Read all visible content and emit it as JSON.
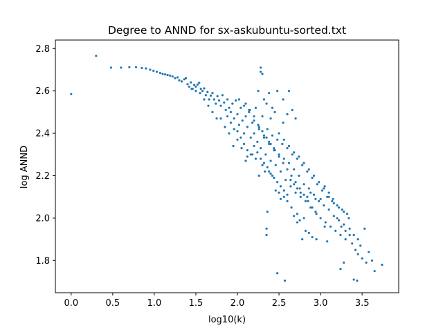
{
  "chart_data": {
    "type": "scatter",
    "title": "Degree to ANND for sx-askubuntu-sorted.txt",
    "xlabel": "log10(k)",
    "ylabel": "log ANND",
    "xlim": [
      -0.19,
      3.94
    ],
    "ylim": [
      1.648,
      2.84
    ],
    "xticks": [
      0.0,
      0.5,
      1.0,
      1.5,
      2.0,
      2.5,
      3.0,
      3.5
    ],
    "xtick_labels": [
      "0.0",
      "0.5",
      "1.0",
      "1.5",
      "2.0",
      "2.5",
      "3.0",
      "3.5"
    ],
    "yticks": [
      1.8,
      2.0,
      2.2,
      2.4,
      2.6,
      2.8
    ],
    "ytick_labels": [
      "1.8",
      "2.0",
      "2.2",
      "2.4",
      "2.6",
      "2.8"
    ],
    "grid": false,
    "legend": "none",
    "marker_color": "#1f77b4",
    "series": [
      {
        "points": [
          [
            0.0,
            2.585
          ],
          [
            0.3,
            2.765
          ],
          [
            0.48,
            2.71
          ],
          [
            0.6,
            2.71
          ],
          [
            0.7,
            2.712
          ],
          [
            0.78,
            2.712
          ],
          [
            0.85,
            2.708
          ],
          [
            0.9,
            2.706
          ],
          [
            0.95,
            2.7
          ],
          [
            0.99,
            2.695
          ],
          [
            1.03,
            2.69
          ],
          [
            1.07,
            2.685
          ],
          [
            1.1,
            2.68
          ],
          [
            1.13,
            2.678
          ],
          [
            1.16,
            2.675
          ],
          [
            1.19,
            2.672
          ],
          [
            1.22,
            2.668
          ],
          [
            1.25,
            2.66
          ],
          [
            1.28,
            2.664
          ],
          [
            1.3,
            2.65
          ],
          [
            1.33,
            2.645
          ],
          [
            1.36,
            2.655
          ],
          [
            1.38,
            2.66
          ],
          [
            1.4,
            2.632
          ],
          [
            1.42,
            2.62
          ],
          [
            1.44,
            2.64
          ],
          [
            1.46,
            2.61
          ],
          [
            1.48,
            2.628
          ],
          [
            1.5,
            2.62
          ],
          [
            1.52,
            2.63
          ],
          [
            1.54,
            2.638
          ],
          [
            1.56,
            2.61
          ],
          [
            1.58,
            2.6
          ],
          [
            1.6,
            2.612
          ],
          [
            1.62,
            2.58
          ],
          [
            1.64,
            2.595
          ],
          [
            1.66,
            2.56
          ],
          [
            1.68,
            2.578
          ],
          [
            1.7,
            2.59
          ],
          [
            1.72,
            2.56
          ],
          [
            1.74,
            2.54
          ],
          [
            1.76,
            2.575
          ],
          [
            1.78,
            2.555
          ],
          [
            1.8,
            2.53
          ],
          [
            1.82,
            2.58
          ],
          [
            1.84,
            2.545
          ],
          [
            1.86,
            2.51
          ],
          [
            1.88,
            2.56
          ],
          [
            1.9,
            2.52
          ],
          [
            1.92,
            2.5
          ],
          [
            1.94,
            2.54
          ],
          [
            1.96,
            2.47
          ],
          [
            1.98,
            2.555
          ],
          [
            2.0,
            2.49
          ],
          [
            2.02,
            2.44
          ],
          [
            2.04,
            2.52
          ],
          [
            2.06,
            2.46
          ],
          [
            2.08,
            2.4
          ],
          [
            2.1,
            2.48
          ],
          [
            2.12,
            2.43
          ],
          [
            2.14,
            2.51
          ],
          [
            2.16,
            2.38
          ],
          [
            2.18,
            2.45
          ],
          [
            2.2,
            2.4
          ],
          [
            2.22,
            2.52
          ],
          [
            2.24,
            2.36
          ],
          [
            2.26,
            2.43
          ],
          [
            2.28,
            2.33
          ],
          [
            2.3,
            2.48
          ],
          [
            2.32,
            2.38
          ],
          [
            2.34,
            2.3
          ],
          [
            2.36,
            2.42
          ],
          [
            2.38,
            2.35
          ],
          [
            2.4,
            2.27
          ],
          [
            2.42,
            2.39
          ],
          [
            2.44,
            2.32
          ],
          [
            2.46,
            2.25
          ],
          [
            2.48,
            2.37
          ],
          [
            2.5,
            2.3
          ],
          [
            2.52,
            2.22
          ],
          [
            2.54,
            2.35
          ],
          [
            2.56,
            2.28
          ],
          [
            2.58,
            2.18
          ],
          [
            2.6,
            2.33
          ],
          [
            2.62,
            2.26
          ],
          [
            2.64,
            2.15
          ],
          [
            2.66,
            2.3
          ],
          [
            2.68,
            2.23
          ],
          [
            2.7,
            2.12
          ],
          [
            2.72,
            2.28
          ],
          [
            2.74,
            2.2
          ],
          [
            2.76,
            2.1
          ],
          [
            2.78,
            2.25
          ],
          [
            2.8,
            2.16
          ],
          [
            2.82,
            2.08
          ],
          [
            2.84,
            2.22
          ],
          [
            2.86,
            2.14
          ],
          [
            2.88,
            2.05
          ],
          [
            2.9,
            2.19
          ],
          [
            2.92,
            2.11
          ],
          [
            2.94,
            2.03
          ],
          [
            2.96,
            2.16
          ],
          [
            2.98,
            2.08
          ],
          [
            3.0,
            2.0
          ],
          [
            3.02,
            2.13
          ],
          [
            3.04,
            2.06
          ],
          [
            3.06,
            1.98
          ],
          [
            3.08,
            2.1
          ],
          [
            3.1,
            2.04
          ],
          [
            3.12,
            1.96
          ],
          [
            3.14,
            2.08
          ],
          [
            3.16,
            2.01
          ],
          [
            3.18,
            1.94
          ],
          [
            3.2,
            2.06
          ],
          [
            3.22,
            1.99
          ],
          [
            3.24,
            1.92
          ],
          [
            3.26,
            2.04
          ],
          [
            3.28,
            1.97
          ],
          [
            3.3,
            1.9
          ],
          [
            3.32,
            2.02
          ],
          [
            3.35,
            1.95
          ],
          [
            3.38,
            1.88
          ],
          [
            3.4,
            1.92
          ],
          [
            3.42,
            1.85
          ],
          [
            3.45,
            1.83
          ],
          [
            3.48,
            1.87
          ],
          [
            3.5,
            1.81
          ],
          [
            3.53,
            1.95
          ],
          [
            3.55,
            1.79
          ],
          [
            3.58,
            1.84
          ],
          [
            3.62,
            1.8
          ],
          [
            3.65,
            1.75
          ],
          [
            3.74,
            1.78
          ],
          [
            3.4,
            1.71
          ],
          [
            3.44,
            1.705
          ],
          [
            3.24,
            1.76
          ],
          [
            3.28,
            1.79
          ],
          [
            2.28,
            2.71
          ],
          [
            2.28,
            2.69
          ],
          [
            2.3,
            2.68
          ],
          [
            2.25,
            2.6
          ],
          [
            2.32,
            2.56
          ],
          [
            2.35,
            2.54
          ],
          [
            2.38,
            2.59
          ],
          [
            2.42,
            2.52
          ],
          [
            2.48,
            2.6
          ],
          [
            2.55,
            2.56
          ],
          [
            2.62,
            2.6
          ],
          [
            2.66,
            2.51
          ],
          [
            2.7,
            2.47
          ],
          [
            2.6,
            2.49
          ],
          [
            2.45,
            2.5
          ],
          [
            2.4,
            2.47
          ],
          [
            2.55,
            2.45
          ],
          [
            2.36,
            2.03
          ],
          [
            2.35,
            1.95
          ],
          [
            2.35,
            1.92
          ],
          [
            2.48,
            1.74
          ],
          [
            2.57,
            1.705
          ],
          [
            2.72,
            1.98
          ],
          [
            2.78,
            1.9
          ],
          [
            2.82,
            1.94
          ],
          [
            2.86,
            1.93
          ],
          [
            2.9,
            1.91
          ],
          [
            2.95,
            1.9
          ],
          [
            3.05,
            1.96
          ],
          [
            3.08,
            1.89
          ],
          [
            2.38,
            2.22
          ],
          [
            2.42,
            2.2
          ],
          [
            2.46,
            2.13
          ],
          [
            2.5,
            2.12
          ],
          [
            2.52,
            2.09
          ],
          [
            2.56,
            2.1
          ],
          [
            2.6,
            2.08
          ],
          [
            2.65,
            2.05
          ],
          [
            2.68,
            2.01
          ],
          [
            2.72,
            2.02
          ],
          [
            2.75,
            1.99
          ],
          [
            2.8,
            2.0
          ],
          [
            2.3,
            2.25
          ],
          [
            2.33,
            2.22
          ],
          [
            2.26,
            2.2
          ],
          [
            2.22,
            2.28
          ],
          [
            2.18,
            2.3
          ],
          [
            2.12,
            2.29
          ],
          [
            2.1,
            2.27
          ],
          [
            2.05,
            2.33
          ],
          [
            2.0,
            2.37
          ],
          [
            1.95,
            2.34
          ],
          [
            1.9,
            2.4
          ],
          [
            1.85,
            2.43
          ],
          [
            1.8,
            2.47
          ],
          [
            1.75,
            2.47
          ],
          [
            1.7,
            2.5
          ],
          [
            1.65,
            2.53
          ],
          [
            1.6,
            2.56
          ],
          [
            1.55,
            2.59
          ],
          [
            1.5,
            2.6
          ],
          [
            1.45,
            2.61
          ],
          [
            2.1,
            2.54
          ],
          [
            2.15,
            2.51
          ],
          [
            2.2,
            2.48
          ],
          [
            2.25,
            2.44
          ],
          [
            2.3,
            2.41
          ],
          [
            2.35,
            2.38
          ],
          [
            2.4,
            2.35
          ],
          [
            2.45,
            2.32
          ],
          [
            2.5,
            2.29
          ],
          [
            2.55,
            2.26
          ],
          [
            2.6,
            2.23
          ],
          [
            2.65,
            2.2
          ],
          [
            2.7,
            2.17
          ],
          [
            2.75,
            2.14
          ],
          [
            2.8,
            2.11
          ],
          [
            2.85,
            2.08
          ],
          [
            2.9,
            2.05
          ],
          [
            2.95,
            2.02
          ],
          [
            3.0,
            2.09
          ],
          [
            3.05,
            2.15
          ],
          [
            3.1,
            2.12
          ],
          [
            3.15,
            2.09
          ],
          [
            3.2,
            2.0
          ],
          [
            3.25,
            1.96
          ],
          [
            3.3,
            1.94
          ],
          [
            3.35,
            1.92
          ],
          [
            3.45,
            1.9
          ],
          [
            2.02,
            2.56
          ],
          [
            2.08,
            2.53
          ],
          [
            2.14,
            2.5
          ],
          [
            2.2,
            2.46
          ],
          [
            2.26,
            2.42
          ],
          [
            2.32,
            2.39
          ],
          [
            2.38,
            2.36
          ],
          [
            2.44,
            2.33
          ],
          [
            2.5,
            2.4
          ],
          [
            2.56,
            2.37
          ],
          [
            2.62,
            2.34
          ],
          [
            2.68,
            2.31
          ],
          [
            2.74,
            2.29
          ],
          [
            2.8,
            2.26
          ],
          [
            2.86,
            2.23
          ],
          [
            2.92,
            2.2
          ],
          [
            2.98,
            2.17
          ],
          [
            3.04,
            2.14
          ],
          [
            3.1,
            2.1
          ],
          [
            3.16,
            2.07
          ],
          [
            3.22,
            2.05
          ],
          [
            3.28,
            2.03
          ],
          [
            3.34,
            2.0
          ],
          [
            1.88,
            2.48
          ],
          [
            1.92,
            2.45
          ],
          [
            1.96,
            2.42
          ],
          [
            2.0,
            2.41
          ],
          [
            2.04,
            2.38
          ],
          [
            2.08,
            2.35
          ],
          [
            2.12,
            2.32
          ],
          [
            2.16,
            2.3
          ],
          [
            2.2,
            2.34
          ],
          [
            2.24,
            2.31
          ],
          [
            2.28,
            2.28
          ],
          [
            2.32,
            2.26
          ],
          [
            2.36,
            2.24
          ],
          [
            2.4,
            2.21
          ],
          [
            2.44,
            2.19
          ],
          [
            2.48,
            2.17
          ],
          [
            2.52,
            2.15
          ],
          [
            2.56,
            2.13
          ],
          [
            2.6,
            2.11
          ],
          [
            2.64,
            2.18
          ],
          [
            2.68,
            2.16
          ],
          [
            2.72,
            2.14
          ],
          [
            2.76,
            2.12
          ],
          [
            2.84,
            2.1
          ],
          [
            2.88,
            2.12
          ],
          [
            2.94,
            2.09
          ]
        ]
      }
    ]
  }
}
